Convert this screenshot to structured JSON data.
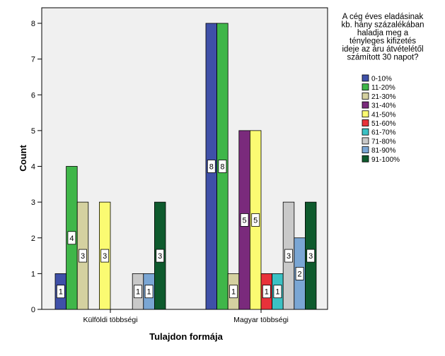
{
  "chart_data": {
    "type": "bar",
    "title": "",
    "xlabel": "Tulajdon formája",
    "ylabel": "Count",
    "ylim": [
      0,
      8
    ],
    "yticks": [
      0,
      1,
      2,
      3,
      4,
      5,
      6,
      7,
      8
    ],
    "grid": false,
    "legend_position": "right",
    "legend_title_lines": [
      "A cég éves eladásinak",
      "kb. hány százalékában",
      "haladja meg a",
      "tényleges kifizetés",
      "ideje az áru átvételétől",
      "számított 30 napot?"
    ],
    "categories": [
      "Külföldi többségi",
      "Magyar többségi"
    ],
    "series": [
      {
        "name": "0-10%",
        "color": "#3f50a8",
        "values": [
          1,
          8
        ]
      },
      {
        "name": "11-20%",
        "color": "#3fb649",
        "values": [
          4,
          8
        ]
      },
      {
        "name": "21-30%",
        "color": "#d4d1a0",
        "values": [
          3,
          1
        ]
      },
      {
        "name": "31-40%",
        "color": "#7a2a7c",
        "values": [
          0,
          5
        ]
      },
      {
        "name": "41-50%",
        "color": "#fbfb72",
        "values": [
          3,
          5
        ]
      },
      {
        "name": "51-60%",
        "color": "#e8323a",
        "values": [
          0,
          1
        ]
      },
      {
        "name": "61-70%",
        "color": "#3bc1c4",
        "values": [
          0,
          1
        ]
      },
      {
        "name": "71-80%",
        "color": "#c9c9c9",
        "values": [
          1,
          3
        ]
      },
      {
        "name": "81-90%",
        "color": "#7aa6d4",
        "values": [
          1,
          2
        ]
      },
      {
        "name": "91-100%",
        "color": "#0e5a2d",
        "values": [
          3,
          3
        ]
      }
    ]
  }
}
